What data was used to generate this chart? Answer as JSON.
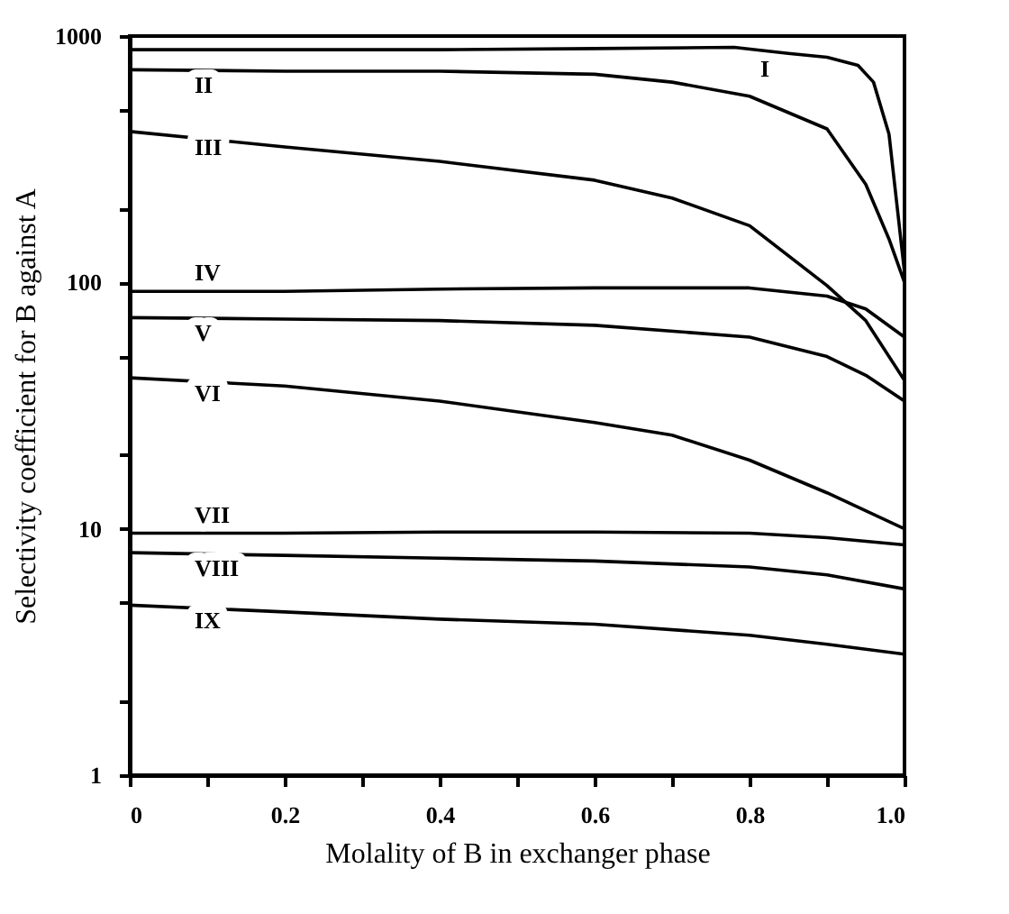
{
  "chart_data": {
    "type": "line",
    "xlabel": "Molality of B in exchanger phase",
    "ylabel": "Selectivity coefficient for B against A",
    "log": "y",
    "grid": false,
    "legend": false,
    "marker": "none",
    "line_style": "solid",
    "xlim": [
      0,
      1.0
    ],
    "ylim": [
      1,
      1000
    ],
    "xticks": [
      {
        "value": 0,
        "label": "0"
      },
      {
        "value": 0.1,
        "label": null
      },
      0.2,
      {
        "value": 0.3,
        "label": null
      },
      0.4,
      {
        "value": 0.5,
        "label": null
      },
      0.6,
      {
        "value": 0.7,
        "label": null
      },
      0.8,
      {
        "value": 0.9,
        "label": null
      },
      {
        "value": 1.0,
        "label": "1.0"
      }
    ],
    "yticks": [
      1,
      {
        "value": 2,
        "label": null
      },
      {
        "value": 5,
        "label": null
      },
      10,
      {
        "value": 20,
        "label": null
      },
      {
        "value": 50,
        "label": null
      },
      100,
      {
        "value": 200,
        "label": null
      },
      {
        "value": 500,
        "label": null
      },
      1000
    ],
    "series": [
      {
        "name": "I",
        "color": "#000000",
        "x": [
          0,
          0.2,
          0.4,
          0.6,
          0.78,
          0.85,
          0.9,
          0.94,
          0.96,
          0.98,
          1.0
        ],
        "values": [
          880,
          880,
          880,
          890,
          900,
          850,
          820,
          760,
          650,
          400,
          110
        ]
      },
      {
        "name": "II",
        "color": "#000000",
        "x": [
          0,
          0.2,
          0.4,
          0.6,
          0.7,
          0.8,
          0.9,
          0.95,
          0.98,
          1.0
        ],
        "values": [
          730,
          720,
          720,
          700,
          650,
          570,
          420,
          250,
          150,
          100
        ]
      },
      {
        "name": "III",
        "color": "#000000",
        "x": [
          0,
          0.2,
          0.4,
          0.6,
          0.7,
          0.8,
          0.9,
          0.95,
          1.0
        ],
        "values": [
          410,
          355,
          310,
          260,
          220,
          170,
          97,
          70,
          40
        ]
      },
      {
        "name": "IV",
        "color": "#000000",
        "x": [
          0,
          0.2,
          0.4,
          0.6,
          0.8,
          0.9,
          0.95,
          1.0
        ],
        "values": [
          92,
          92,
          94,
          95,
          95,
          88,
          78,
          60
        ]
      },
      {
        "name": "V",
        "color": "#000000",
        "x": [
          0,
          0.2,
          0.4,
          0.6,
          0.8,
          0.9,
          0.95,
          1.0
        ],
        "values": [
          72,
          71,
          70,
          67,
          60,
          50,
          42,
          33
        ]
      },
      {
        "name": "VI",
        "color": "#000000",
        "x": [
          0,
          0.2,
          0.4,
          0.6,
          0.7,
          0.8,
          0.9,
          1.0
        ],
        "values": [
          41,
          38,
          33,
          27,
          24,
          19,
          14,
          10
        ]
      },
      {
        "name": "VII",
        "color": "#000000",
        "x": [
          0,
          0.2,
          0.4,
          0.6,
          0.8,
          0.9,
          1.0
        ],
        "values": [
          9.6,
          9.6,
          9.7,
          9.7,
          9.6,
          9.2,
          8.6
        ]
      },
      {
        "name": "VIII",
        "color": "#000000",
        "x": [
          0,
          0.2,
          0.4,
          0.6,
          0.8,
          0.9,
          1.0
        ],
        "values": [
          8.0,
          7.8,
          7.6,
          7.4,
          7.0,
          6.5,
          5.7
        ]
      },
      {
        "name": "IX",
        "color": "#000000",
        "x": [
          0,
          0.2,
          0.4,
          0.6,
          0.8,
          0.9,
          1.0
        ],
        "values": [
          4.9,
          4.6,
          4.3,
          4.1,
          3.7,
          3.4,
          3.1
        ]
      }
    ]
  }
}
